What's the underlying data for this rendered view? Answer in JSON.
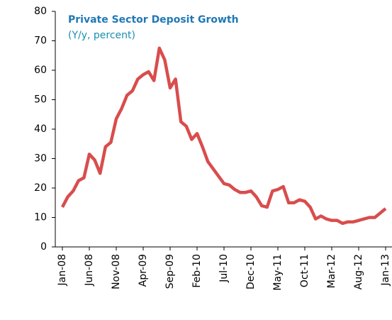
{
  "chart_data": {
    "type": "line",
    "title": "Private Sector Deposit Growth",
    "subtitle": "(Y/y, percent)",
    "categories": [
      "Jan-08",
      null,
      null,
      null,
      null,
      "Jun-08",
      null,
      null,
      null,
      null,
      "Nov-08",
      null,
      null,
      null,
      null,
      "Apr-09",
      null,
      null,
      null,
      null,
      "Sep-09",
      null,
      null,
      null,
      null,
      "Feb-10",
      null,
      null,
      null,
      null,
      "Jul-10",
      null,
      null,
      null,
      null,
      "Dec-10",
      null,
      null,
      null,
      null,
      "May-11",
      null,
      null,
      null,
      null,
      "Oct-11",
      null,
      null,
      null,
      null,
      "Mar-12",
      null,
      null,
      null,
      null,
      "Aug-12",
      null,
      null,
      null,
      null,
      "Jan-13"
    ],
    "values": [
      13.5,
      17,
      19,
      22.5,
      23.5,
      31.5,
      29.5,
      25,
      34,
      35.5,
      43.5,
      47,
      51.5,
      53,
      57,
      58.5,
      59.5,
      56.5,
      67.5,
      63.5,
      54,
      57,
      42.5,
      41,
      36.5,
      38.5,
      34,
      29,
      26.5,
      24,
      21.5,
      21,
      19.5,
      18.5,
      18.5,
      19,
      17,
      14,
      13.5,
      19,
      19.5,
      20.5,
      15,
      15,
      16,
      15.5,
      13.5,
      9.5,
      10.5,
      9.5,
      9,
      9,
      8,
      8.5,
      8.5,
      9,
      9.5,
      10,
      10,
      11.5,
      13
    ],
    "color": "#d94d4d",
    "ylim": [
      0,
      80
    ],
    "yticks": [
      0,
      10,
      20,
      30,
      40,
      50,
      60,
      70,
      80
    ],
    "grid": false
  }
}
